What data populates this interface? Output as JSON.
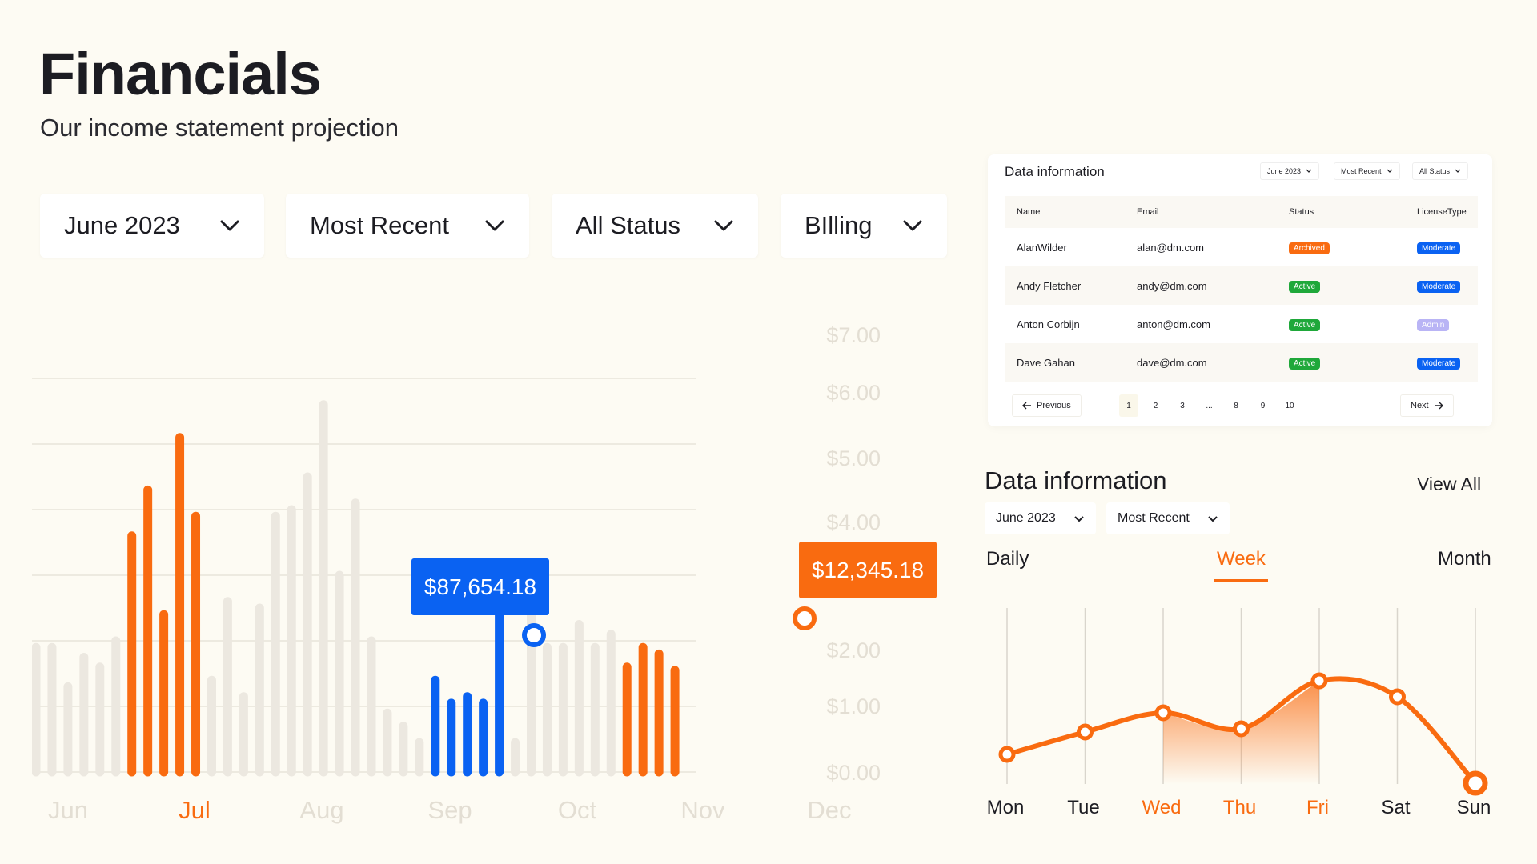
{
  "header": {
    "title": "Financials",
    "subtitle": "Our income statement projection"
  },
  "filters": [
    {
      "label": "June 2023"
    },
    {
      "label": "Most Recent"
    },
    {
      "label": "All Status"
    },
    {
      "label": "BIlling"
    }
  ],
  "colors": {
    "accent": "#f96b10",
    "blue": "#0a62f2",
    "muted": "#e3ded3",
    "green": "#1fa83a",
    "admin": "#b9b4f5"
  },
  "tooltips": {
    "blue": "$87,654.18",
    "orange": "$12,345.18"
  },
  "chart_data": [
    {
      "type": "bar",
      "categories": [
        "Jun",
        "Jul",
        "Aug",
        "Sep",
        "Oct",
        "Nov",
        "Dec"
      ],
      "active_category": "Jul",
      "y_tick_labels": [
        "$0.00",
        "$1.00",
        "$2.00",
        "$4.00",
        "$5.00",
        "$6.00",
        "$7.00"
      ],
      "ylim": [
        0,
        7
      ],
      "bar_values": [
        1.9,
        1.9,
        1.3,
        1.75,
        1.6,
        2.0,
        3.6,
        4.3,
        2.4,
        5.1,
        3.9,
        1.4,
        2.6,
        1.15,
        2.5,
        3.9,
        4.0,
        4.5,
        5.6,
        3.0,
        4.1,
        2.0,
        0.9,
        0.7,
        0.45,
        1.4,
        1.05,
        1.15,
        1.05,
        2.5,
        0.45,
        2.7,
        1.9,
        1.9,
        2.25,
        1.9,
        2.1,
        1.6,
        1.9,
        1.8,
        1.55,
        0.0
      ],
      "bar_series": [
        "gray",
        "gray",
        "gray",
        "gray",
        "gray",
        "gray",
        "orange",
        "orange",
        "orange",
        "orange",
        "orange",
        "gray",
        "gray",
        "gray",
        "gray",
        "gray",
        "gray",
        "gray",
        "gray",
        "gray",
        "gray",
        "gray",
        "gray",
        "gray",
        "gray",
        "blue",
        "blue",
        "blue",
        "blue",
        "blue",
        "gray",
        "gray",
        "gray",
        "gray",
        "gray",
        "gray",
        "gray",
        "orange",
        "orange",
        "orange",
        "orange",
        "gray"
      ],
      "grid": true
    },
    {
      "type": "line",
      "categories": [
        "Mon",
        "Tue",
        "Wed",
        "Thu",
        "Fri",
        "Sat",
        "Sun"
      ],
      "highlighted": [
        "Wed",
        "Thu",
        "Fri"
      ],
      "values": [
        2.3,
        3.0,
        3.6,
        3.1,
        4.6,
        4.1,
        1.4
      ],
      "ylim": [
        0,
        6
      ]
    }
  ],
  "table_card": {
    "title": "Data information",
    "selects": [
      "June 2023",
      "Most Recent",
      "All Status"
    ],
    "columns": [
      "Name",
      "Email",
      "Status",
      "LicenseType"
    ],
    "rows": [
      {
        "name": "AlanWilder",
        "email": "alan@dm.com",
        "status": "Archived",
        "status_color": "#f96b10",
        "license": "Moderate",
        "license_color": "#0a62f2"
      },
      {
        "name": "Andy Fletcher",
        "email": "andy@dm.com",
        "status": "Active",
        "status_color": "#1fa83a",
        "license": "Moderate",
        "license_color": "#0a62f2"
      },
      {
        "name": "Anton Corbijn",
        "email": "anton@dm.com",
        "status": "Active",
        "status_color": "#1fa83a",
        "license": "Admin",
        "license_color": "#b9b4f5"
      },
      {
        "name": "Dave Gahan",
        "email": "dave@dm.com",
        "status": "Active",
        "status_color": "#1fa83a",
        "license": "Moderate",
        "license_color": "#0a62f2"
      }
    ],
    "pagination": {
      "previous": "Previous",
      "next": "Next",
      "pages": [
        "1",
        "2",
        "3",
        "...",
        "8",
        "9",
        "10"
      ],
      "current": "1"
    }
  },
  "line_section": {
    "title": "Data information",
    "view_all": "View All",
    "selects": [
      "June 2023",
      "Most Recent"
    ],
    "periods": [
      "Daily",
      "Week",
      "Month"
    ],
    "active_period": "Week"
  }
}
